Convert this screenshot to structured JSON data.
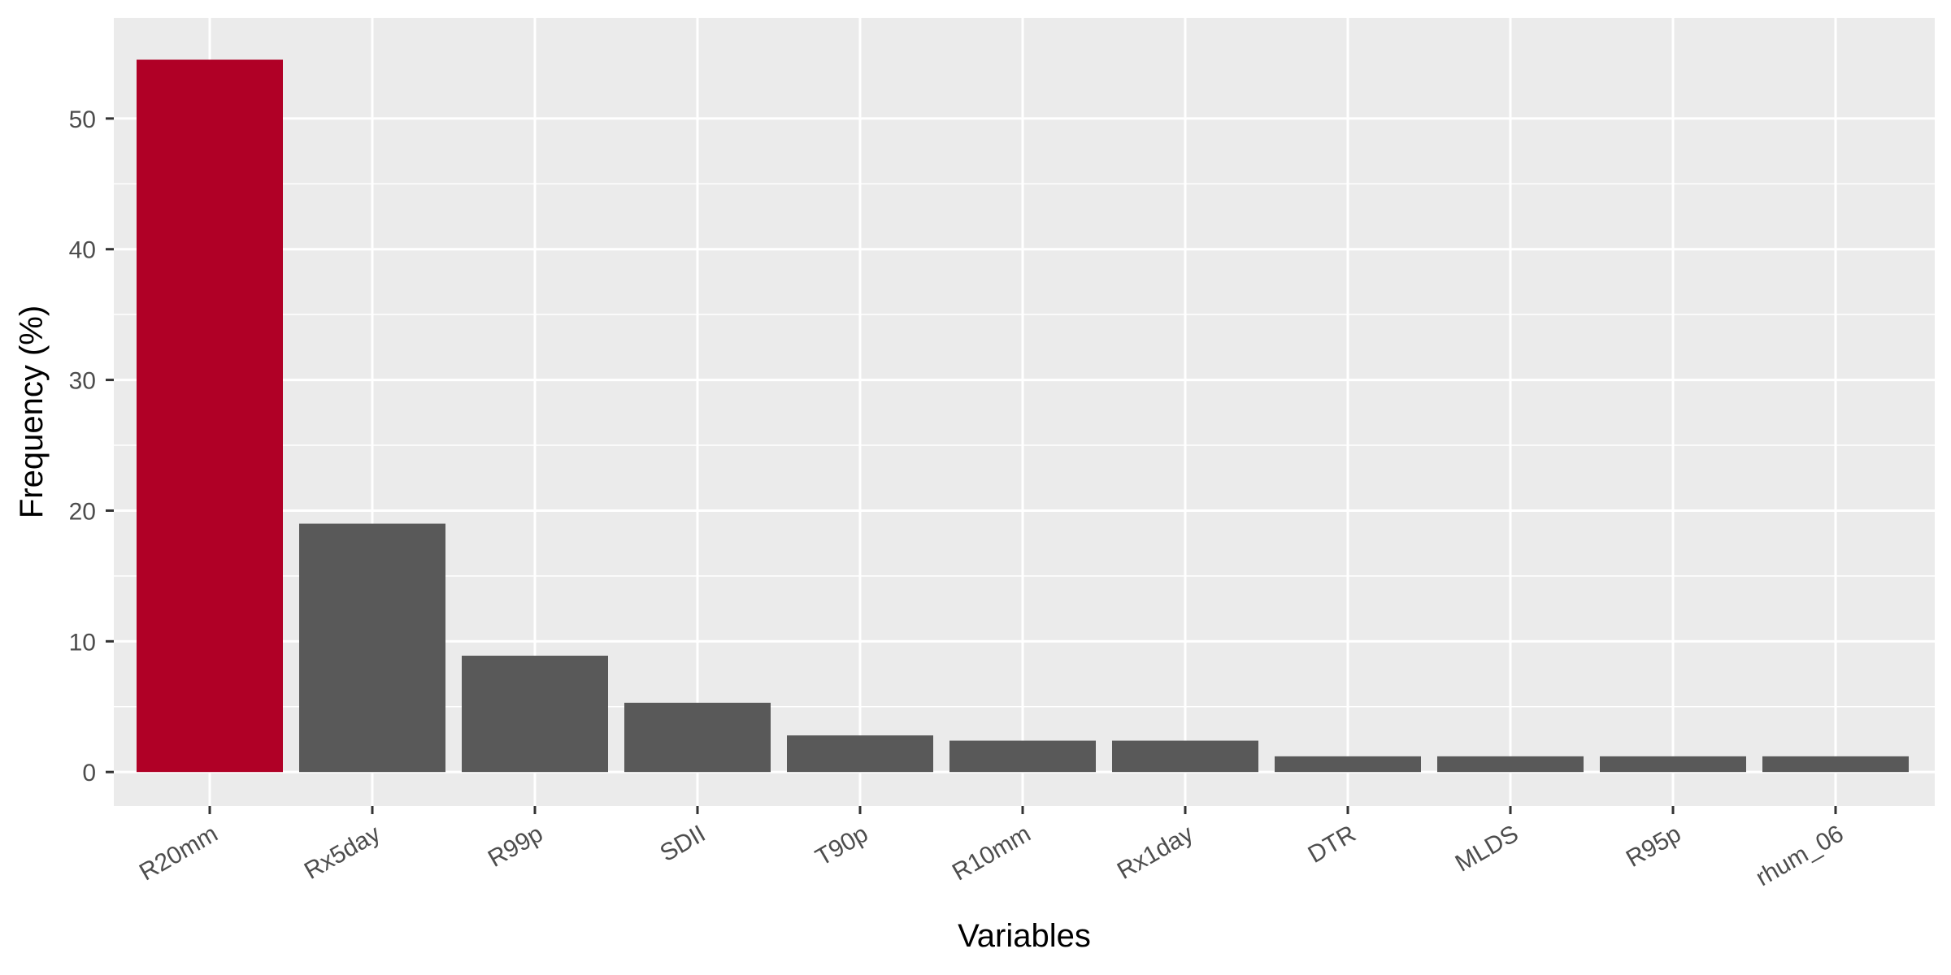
{
  "chart_data": {
    "type": "bar",
    "xlabel": "Variables",
    "ylabel": "Frequency (%)",
    "categories": [
      "R20mm",
      "Rx5day",
      "R99p",
      "SDII",
      "T90p",
      "R10mm",
      "Rx1day",
      "DTR",
      "MLDS",
      "R95p",
      "rhum_06"
    ],
    "values": [
      54.5,
      19.0,
      8.9,
      5.3,
      2.8,
      2.4,
      2.4,
      1.2,
      1.2,
      1.2,
      1.2
    ],
    "ylim": [
      -2.6,
      57.7
    ],
    "yticks": [
      0,
      10,
      20,
      30,
      40,
      50
    ],
    "grid": true,
    "colors": {
      "highlight": "#b00026",
      "bar": "#595959",
      "panel": "#ebebeb",
      "grid": "#ffffff"
    },
    "highlight_index": 0
  }
}
